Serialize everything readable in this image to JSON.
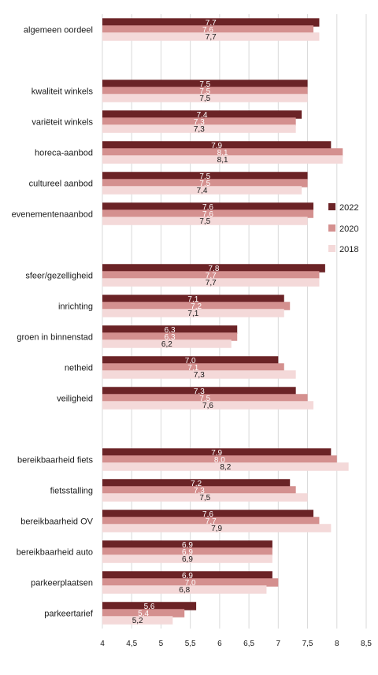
{
  "chart_data": {
    "type": "bar",
    "orientation": "horizontal",
    "categories": [
      "algemeen oordeel",
      "",
      "kwaliteit winkels",
      "variëteit winkels",
      "horeca-aanbod",
      "cultureel aanbod",
      "evenementenaanbod",
      "",
      "sfeer/gezelligheid",
      "inrichting",
      "groen in binnenstad",
      "netheid",
      "veiligheid",
      "",
      "bereikbaarheid fiets",
      "fietsstalling",
      "bereikbaarheid OV",
      "bereikbaarheid auto",
      "parkeerplaatsen",
      "parkeertarief"
    ],
    "series": [
      {
        "name": "2022",
        "color": "#6b2326",
        "values": [
          7.7,
          null,
          7.5,
          7.4,
          7.9,
          7.5,
          7.6,
          null,
          7.8,
          7.1,
          6.3,
          7.0,
          7.3,
          null,
          7.9,
          7.2,
          7.6,
          6.9,
          6.9,
          5.6
        ],
        "labels": [
          "7,7",
          "",
          "7,5",
          "7,4",
          "7,9",
          "7,5",
          "7,6",
          "",
          "7,8",
          "7,1",
          "6,3",
          "7,0",
          "7,3",
          "",
          "7,9",
          "7,2",
          "7,6",
          "6,9",
          "6,9",
          "5,6"
        ]
      },
      {
        "name": "2020",
        "color": "#d4908f",
        "values": [
          7.6,
          null,
          7.5,
          7.3,
          8.1,
          7.5,
          7.6,
          null,
          7.7,
          7.2,
          6.3,
          7.1,
          7.5,
          null,
          8.0,
          7.3,
          7.7,
          6.9,
          7.0,
          5.4
        ],
        "labels": [
          "7,6",
          "",
          "7,5",
          "7,3",
          "8,1",
          "7,5",
          "7,6",
          "",
          "7,7",
          "7,2",
          "6,3",
          "7,1",
          "7,5",
          "",
          "8,0",
          "7,3",
          "7,7",
          "6,9",
          "7,0",
          "5,4"
        ]
      },
      {
        "name": "2018",
        "color": "#f4d9d9",
        "values": [
          7.7,
          null,
          7.5,
          7.3,
          8.1,
          7.4,
          7.5,
          null,
          7.7,
          7.1,
          6.2,
          7.3,
          7.6,
          null,
          8.2,
          7.5,
          7.9,
          6.9,
          6.8,
          5.2
        ],
        "labels": [
          "7,7",
          "",
          "7,5",
          "7,3",
          "8,1",
          "7,4",
          "7,5",
          "",
          "7,7",
          "7,1",
          "6,2",
          "7,3",
          "7,6",
          "",
          "8,2",
          "7,5",
          "7,9",
          "6,9",
          "6,8",
          "5,2"
        ]
      }
    ],
    "xlim": [
      4,
      8.5
    ],
    "xticks": [
      4,
      4.5,
      5,
      5.5,
      6,
      6.5,
      7,
      7.5,
      8,
      8.5
    ],
    "xtick_labels": [
      "4",
      "4,5",
      "5",
      "5,5",
      "6",
      "6,5",
      "7",
      "7,5",
      "8",
      "8,5"
    ],
    "grid": true,
    "legend_position": "right-middle",
    "label_colors": {
      "2022": "#ffffff",
      "2020": "#ffffff",
      "2018": "#1a1a1a"
    }
  }
}
